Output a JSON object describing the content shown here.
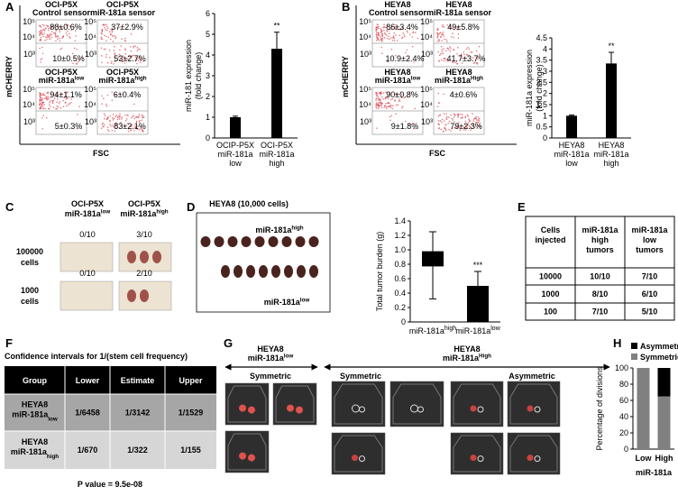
{
  "A": {
    "label": "A",
    "y_axis": "mCHERRY",
    "x_axis": "FSC",
    "decades": [
      "10⁵",
      "10⁴",
      "10³"
    ],
    "plots": [
      {
        "title": {
          "lines": [
            "OCI-P5X",
            "Control sensor"
          ]
        },
        "upper": "88±0.6%",
        "lower": "10±0.5%"
      },
      {
        "title": {
          "lines": [
            "OCI-P5X",
            "miR-181a sensor"
          ]
        },
        "upper": "37±2.9%",
        "lower": "53±2.7%"
      },
      {
        "title": {
          "lines": [
            "OCI-P5X",
            "miR-181a"
          ],
          "sup": "low"
        },
        "upper": "94±1.1%",
        "lower": "5±0.3%"
      },
      {
        "title": {
          "lines": [
            "OCI-P5X",
            "miR-181a"
          ],
          "sup": "high"
        },
        "upper": "6±0.4%",
        "lower": "83±2.1%"
      }
    ]
  },
  "B": {
    "label": "B",
    "y_axis": "mCHERRY",
    "x_axis": "FSC",
    "decades": [
      "10⁵",
      "10⁴",
      "10³"
    ],
    "plots": [
      {
        "title": {
          "lines": [
            "HEYA8",
            "Control sensor"
          ]
        },
        "upper": "86±3.4%",
        "lower": "10.9±2.4%"
      },
      {
        "title": {
          "lines": [
            "HEYA8",
            "miR-181a sensor"
          ]
        },
        "upper": "49±5.8%",
        "lower": "41.7±3.7%"
      },
      {
        "title": {
          "lines": [
            "HEYA8",
            "miR-181a"
          ],
          "sup": "low"
        },
        "upper": "90±0.8%",
        "lower": "9±1.8%"
      },
      {
        "title": {
          "lines": [
            "HEYA8",
            "miR-181a"
          ],
          "sup": "High"
        },
        "upper": "4±0.6%",
        "lower": "79±2.3%"
      }
    ]
  },
  "C": {
    "label": "C",
    "columns": [
      {
        "lines": [
          "OCI-P5X",
          "miR-181a"
        ],
        "sup": "low"
      },
      {
        "lines": [
          "OCI-P5X",
          "miR-181a"
        ],
        "sup": "high"
      }
    ],
    "rows": [
      {
        "cells": {
          "lines": [
            "100000",
            "cells"
          ]
        },
        "counts": [
          "0/10",
          "3/10"
        ]
      },
      {
        "cells": {
          "lines": [
            "1000",
            "cells"
          ]
        },
        "counts": [
          "0/10",
          "2/10"
        ]
      }
    ]
  },
  "D": {
    "label": "D",
    "title": "HEYA8 (10,000 cells)",
    "groups": [
      {
        "lines": [
          "miR-181a"
        ],
        "sup": "high"
      },
      {
        "lines": [
          "miR-181a"
        ],
        "sup": "low"
      }
    ]
  },
  "E": {
    "label": "E",
    "header": [
      {
        "lines": [
          "Cells",
          "injected"
        ]
      },
      {
        "lines": [
          "miR-181a",
          "high",
          "tumors"
        ]
      },
      {
        "lines": [
          "miR-181a",
          "low",
          "tumors"
        ]
      }
    ],
    "rows": [
      [
        "10000",
        "10/10",
        "7/10"
      ],
      [
        "1000",
        "8/10",
        "6/10"
      ],
      [
        "100",
        "7/10",
        "5/10"
      ]
    ]
  },
  "F": {
    "label": "F",
    "title": "Confidence intervals for 1/(stem cell frequency)",
    "header": [
      "Group",
      "Lower",
      "Estimate",
      "Upper"
    ],
    "rows": [
      [
        {
          "lines": [
            "HEYA8",
            "miR-181a"
          ],
          "sub": "low"
        },
        "1/6458",
        "1/3142",
        "1/1529"
      ],
      [
        {
          "lines": [
            "HEYA8",
            "miR-181a"
          ],
          "sub": "high"
        },
        "1/670",
        "1/322",
        "1/155"
      ]
    ],
    "footer": "P value = 9.5e-08"
  },
  "G": {
    "label": "G",
    "low_group": {
      "lines": [
        "HEYA8",
        "miR-181a"
      ],
      "sup": "low"
    },
    "high_group": {
      "lines": [
        "HEYA8",
        "miR-181a"
      ],
      "sup": "High"
    },
    "low_division": "Symmetric",
    "high_divisions": [
      "Symmetric",
      "Asymmetric"
    ]
  },
  "H": {
    "label": "H"
  },
  "chart_data": [
    {
      "type": "bar",
      "ylabel": {
        "lines": [
          "miR-181 expression",
          "(fold change)"
        ]
      },
      "categories": [
        {
          "lines": [
            "OCIP-P5X",
            "miR-181a",
            "low"
          ]
        },
        {
          "lines": [
            "OCI-P5X",
            "miR-181a",
            "high"
          ]
        }
      ],
      "values": [
        1,
        4.3
      ],
      "errors": [
        0.05,
        0.8
      ],
      "color": "#000000",
      "significance": [
        null,
        "**"
      ],
      "ylim": [
        0,
        6
      ],
      "yticks": [
        0,
        1,
        2,
        3,
        4,
        5,
        6
      ]
    },
    {
      "type": "bar",
      "ylabel": {
        "lines": [
          "miR-181a expression",
          "(fold change)"
        ]
      },
      "categories": [
        {
          "lines": [
            "HEYA8",
            "miR-181a",
            "low"
          ]
        },
        {
          "lines": [
            "HEYA8",
            "miR-181a",
            "high"
          ]
        }
      ],
      "values": [
        1,
        3.35
      ],
      "errors": [
        0.03,
        0.5
      ],
      "color": "#000000",
      "significance": [
        null,
        "**"
      ],
      "ylim": [
        0,
        4.5
      ],
      "yticks": [
        0,
        0.5,
        1,
        1.5,
        2,
        2.5,
        3,
        3.5,
        4,
        4.5
      ]
    },
    {
      "type": "box",
      "ylabel": "Total tumor burden (g)",
      "categories": [
        {
          "lines": [
            "miR-181a"
          ],
          "sup": "high"
        },
        {
          "lines": [
            "miR-181a"
          ],
          "sup": "low"
        }
      ],
      "boxes": [
        {
          "min": 0.32,
          "q1": 0.77,
          "q3": 0.98,
          "max": 1.25
        },
        {
          "min": 0,
          "q1": 0,
          "q3": 0.5,
          "max": 0.7
        }
      ],
      "color": "#000000",
      "significance": [
        null,
        "***"
      ],
      "ylim": [
        0,
        1.4
      ],
      "yticks": [
        0,
        0.2,
        0.4,
        0.6,
        0.8,
        {
          "value": 1,
          "label": "1.0"
        },
        1.2,
        1.4
      ]
    },
    {
      "type": "stacked_bar",
      "ylabel": "Percentage of divisions",
      "xlabel": "miR-181a",
      "categories": [
        "Low",
        "High"
      ],
      "series": [
        {
          "name": "Symmetric",
          "color": "#808080",
          "values": [
            100,
            65
          ]
        },
        {
          "name": "Asymmetric",
          "color": "#000000",
          "values": [
            0,
            35
          ]
        }
      ],
      "ylim": [
        0,
        100
      ],
      "yticks": [
        0,
        20,
        40,
        60,
        80,
        100
      ]
    }
  ]
}
